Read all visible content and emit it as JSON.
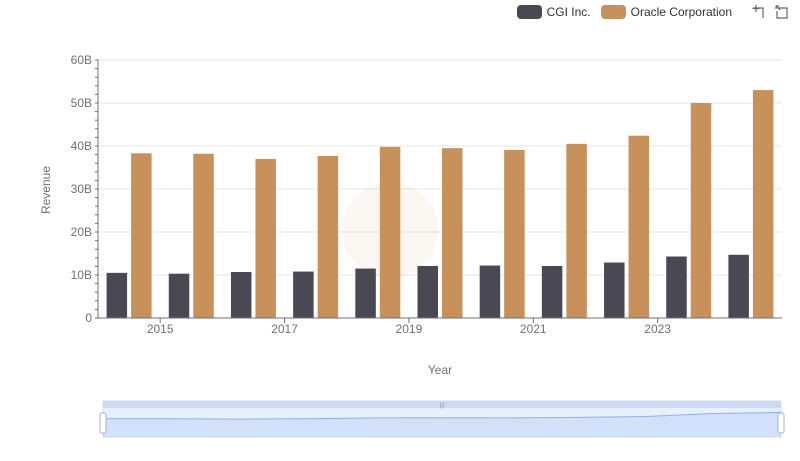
{
  "colors": {
    "cgi": "#4a4953",
    "oracle": "#c8915b",
    "grid": "#e6e6e6",
    "axis": "#6e7079",
    "zoom_fill": "#dbe6fb",
    "zoom_line": "#8fb0f0"
  },
  "legend": [
    {
      "label": "CGI Inc.",
      "color": "#4a4953"
    },
    {
      "label": "Oracle Corporation",
      "color": "#c8915b"
    }
  ],
  "toolbox": {
    "zoom_icon": "zoom-icon",
    "reset_icon": "restore-icon"
  },
  "chart_data": {
    "type": "bar",
    "title": "",
    "xlabel": "Year",
    "ylabel": "Revenue",
    "ylim": [
      0,
      60
    ],
    "yticks": [
      "0",
      "10B",
      "20B",
      "30B",
      "40B",
      "50B",
      "60B"
    ],
    "xtick_labels": [
      "2015",
      "2017",
      "2019",
      "2021",
      "2023"
    ],
    "categories": [
      "2014",
      "2015",
      "2016",
      "2017",
      "2018",
      "2019",
      "2020",
      "2021",
      "2022",
      "2023",
      "2024"
    ],
    "series": [
      {
        "name": "CGI Inc.",
        "values": [
          10.5,
          10.3,
          10.7,
          10.8,
          11.5,
          12.1,
          12.2,
          12.1,
          12.9,
          14.3,
          14.7
        ]
      },
      {
        "name": "Oracle Corporation",
        "values": [
          38.3,
          38.2,
          37.0,
          37.7,
          39.8,
          39.5,
          39.1,
          40.5,
          42.4,
          50.0,
          53.0
        ]
      }
    ],
    "grid": true,
    "legend_position": "top-right",
    "datazoom": true
  }
}
